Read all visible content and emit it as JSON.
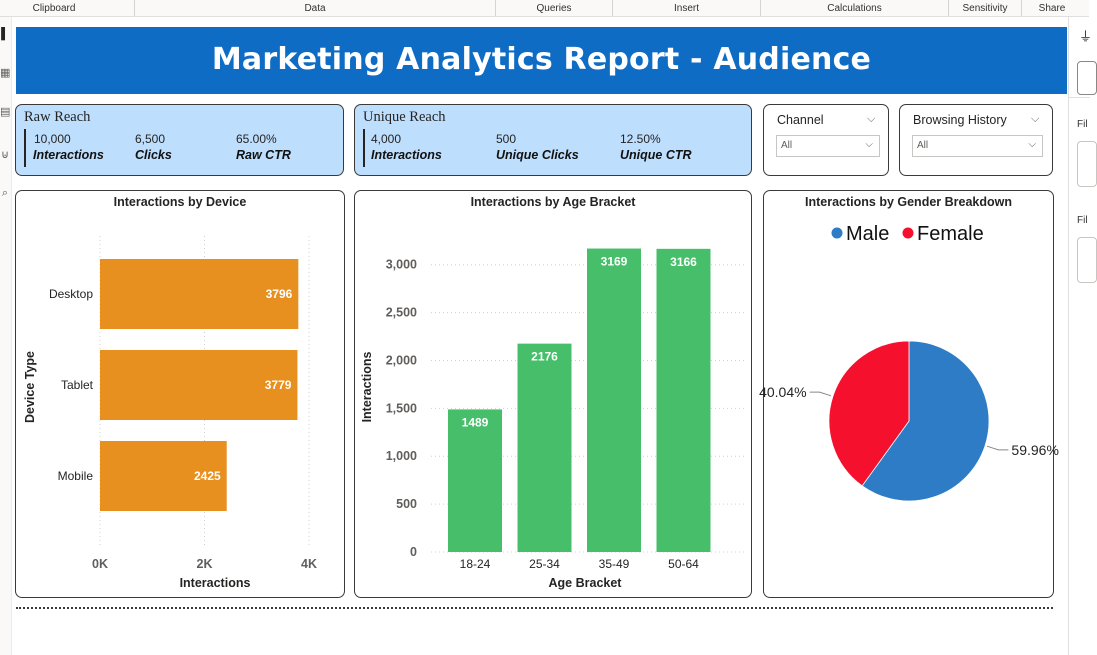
{
  "ribbon": {
    "groups": [
      {
        "label": "Clipboard"
      },
      {
        "label": "Data"
      },
      {
        "label": "Queries"
      },
      {
        "label": "Insert"
      },
      {
        "label": "Calculations"
      },
      {
        "label": "Sensitivity"
      },
      {
        "label": "Share"
      }
    ]
  },
  "right_pane": {
    "labels": [
      "Fil",
      "Fil"
    ]
  },
  "report": {
    "title": "Marketing Analytics Report - Audience"
  },
  "kpis": {
    "raw_reach": {
      "title": "Raw Reach",
      "metrics": [
        {
          "value": "10,000",
          "label": "Interactions"
        },
        {
          "value": "6,500",
          "label": "Clicks"
        },
        {
          "value": "65.00%",
          "label": "Raw CTR"
        }
      ]
    },
    "unique_reach": {
      "title": "Unique Reach",
      "metrics": [
        {
          "value": "4,000",
          "label": "Interactions"
        },
        {
          "value": "500",
          "label": "Unique Clicks"
        },
        {
          "value": "12.50%",
          "label": "Unique CTR"
        }
      ]
    }
  },
  "slicers": {
    "channel": {
      "title": "Channel",
      "selected": "All"
    },
    "browsing_history": {
      "title": "Browsing History",
      "selected": "All"
    }
  },
  "colors": {
    "banner": "#0f6cc5",
    "kpi_bg": "#bddefd",
    "device_bar": "#e8901f",
    "age_bar": "#47be6a",
    "male": "#2e7bc6",
    "female": "#f5102e"
  },
  "chart_data": [
    {
      "type": "bar",
      "orientation": "horizontal",
      "title": "Interactions by Device",
      "xlabel": "Interactions",
      "ylabel": "Device Type",
      "categories": [
        "Desktop",
        "Tablet",
        "Mobile"
      ],
      "values": [
        3796,
        3779,
        2425
      ],
      "xlim": [
        0,
        4000
      ],
      "xticks": [
        "0K",
        "2K",
        "4K"
      ],
      "grid": true
    },
    {
      "type": "bar",
      "title": "Interactions by Age Bracket",
      "xlabel": "Age Bracket",
      "ylabel": "Interactions",
      "categories": [
        "18-24",
        "25-34",
        "35-49",
        "50-64"
      ],
      "values": [
        1489,
        2176,
        3169,
        3166
      ],
      "ylim": [
        0,
        3300
      ],
      "yticks": [
        "0",
        "500",
        "1,000",
        "1,500",
        "2,000",
        "2,500",
        "3,000"
      ],
      "grid": true
    },
    {
      "type": "pie",
      "title": "Interactions by Gender Breakdown",
      "legend": "top-center",
      "slices": [
        {
          "name": "Male",
          "percent": 59.96,
          "label": "59.96%"
        },
        {
          "name": "Female",
          "percent": 40.04,
          "label": "40.04%"
        }
      ]
    }
  ]
}
